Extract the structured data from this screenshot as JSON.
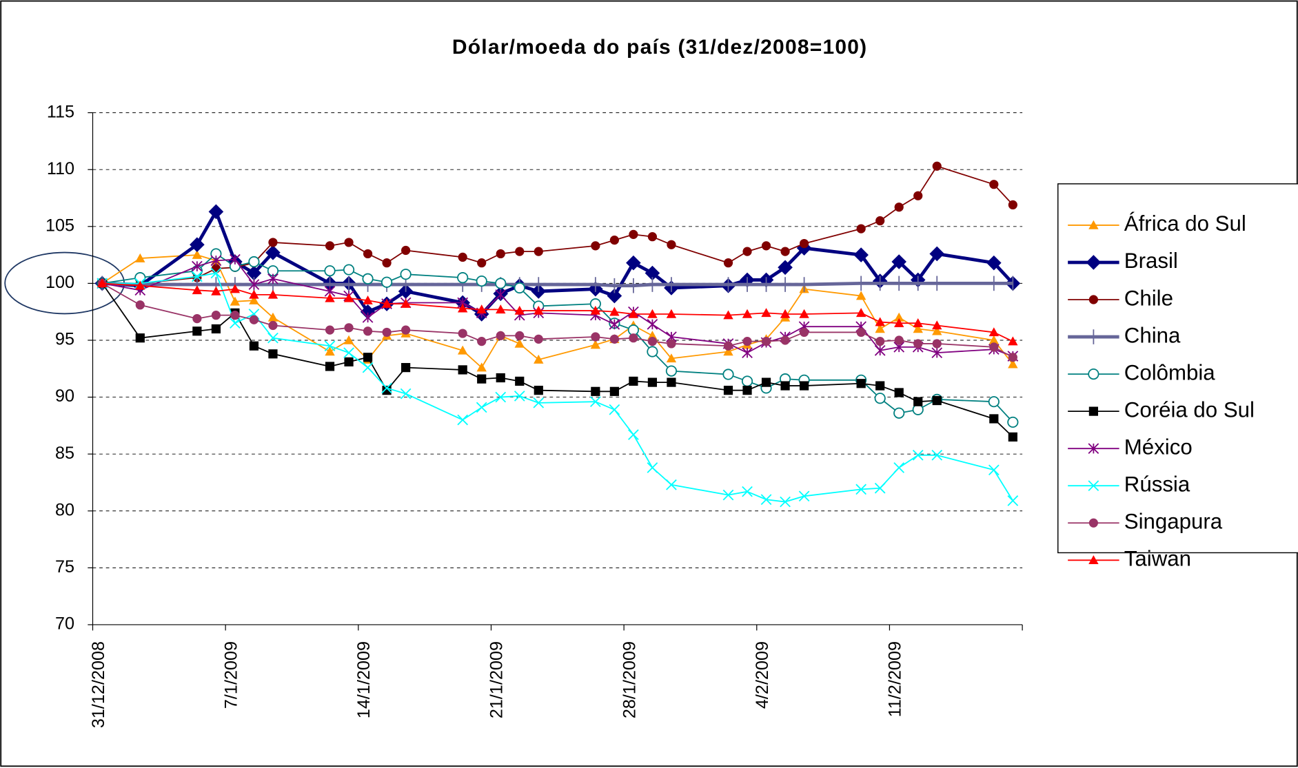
{
  "chart_data": {
    "type": "line",
    "title": "Dólar/moeda do país (31/dez/2008=100)",
    "x": [
      "31/12/2008",
      "2/1/2009",
      "5/1/2009",
      "6/1/2009",
      "7/1/2009",
      "8/1/2009",
      "9/1/2009",
      "12/1/2009",
      "13/1/2009",
      "14/1/2009",
      "15/1/2009",
      "16/1/2009",
      "19/1/2009",
      "20/1/2009",
      "21/1/2009",
      "22/1/2009",
      "23/1/2009",
      "26/1/2009",
      "27/1/2009",
      "28/1/2009",
      "29/1/2009",
      "30/1/2009",
      "2/2/2009",
      "3/2/2009",
      "4/2/2009",
      "5/2/2009",
      "6/2/2009",
      "9/2/2009",
      "10/2/2009",
      "11/2/2009",
      "12/2/2009",
      "13/2/2009",
      "16/2/2009",
      "17/2/2009"
    ],
    "xlim": [
      "31/12/2008",
      "18/2/2009"
    ],
    "xticks": [
      "31/12/2008",
      "7/1/2009",
      "14/1/2009",
      "21/1/2009",
      "28/1/2009",
      "4/2/2009",
      "11/2/2009"
    ],
    "ylim": [
      70,
      115
    ],
    "yticks": [
      70,
      75,
      80,
      85,
      90,
      95,
      100,
      105,
      110,
      115
    ],
    "grid": true,
    "legend": "right",
    "series": [
      {
        "name": "África do Sul",
        "color": "#ff9900",
        "marker": "triangle",
        "values": [
          100,
          102.2,
          102.5,
          102.0,
          98.4,
          98.5,
          97.0,
          94.0,
          95.0,
          93.3,
          95.4,
          95.6,
          94.1,
          92.6,
          95.4,
          94.7,
          93.3,
          94.6,
          95.1,
          96.3,
          95.4,
          93.4,
          94.0,
          94.6,
          95.1,
          97.0,
          99.5,
          98.9,
          96.0,
          97.0,
          96.0,
          95.8,
          95.0,
          92.9
        ]
      },
      {
        "name": "Brasil",
        "color": "#000080",
        "marker": "diamond",
        "line_width": 4,
        "values": [
          100,
          99.8,
          103.4,
          106.3,
          101.9,
          100.9,
          102.7,
          100.0,
          100.0,
          97.5,
          98.2,
          99.3,
          98.3,
          97.3,
          99.1,
          99.8,
          99.3,
          99.5,
          98.9,
          101.8,
          100.9,
          99.6,
          99.8,
          100.3,
          100.3,
          101.4,
          103.1,
          102.5,
          100.2,
          101.9,
          100.3,
          102.6,
          101.8,
          100.0
        ]
      },
      {
        "name": "Chile",
        "color": "#800000",
        "marker": "circle",
        "values": [
          100,
          100.0,
          100.5,
          101.3,
          101.4,
          101.8,
          103.6,
          103.3,
          103.6,
          102.6,
          101.8,
          102.9,
          102.3,
          101.8,
          102.6,
          102.8,
          102.8,
          103.3,
          103.8,
          104.3,
          104.1,
          103.4,
          101.8,
          102.8,
          103.3,
          102.8,
          103.5,
          104.8,
          105.5,
          106.7,
          107.7,
          110.3,
          108.7,
          106.9
        ]
      },
      {
        "name": "China",
        "color": "#666699",
        "marker": "plus",
        "line_width": 4,
        "values": [
          100,
          99.9,
          99.9,
          99.9,
          99.9,
          99.9,
          99.9,
          99.9,
          99.9,
          99.9,
          99.9,
          99.9,
          99.9,
          99.9,
          99.9,
          99.9,
          99.9,
          99.9,
          99.8,
          99.8,
          99.9,
          99.9,
          99.9,
          99.9,
          99.9,
          99.9,
          99.9,
          100.0,
          100.0,
          100.0,
          100.0,
          100.0,
          100.0,
          100.0
        ]
      },
      {
        "name": "Colômbia",
        "color": "#008080",
        "marker": "open-circle",
        "values": [
          100,
          100.5,
          101.1,
          102.6,
          101.5,
          101.9,
          101.1,
          101.1,
          101.2,
          100.4,
          100.1,
          100.8,
          100.5,
          100.2,
          100.0,
          99.6,
          98.0,
          98.2,
          96.5,
          95.9,
          94.0,
          92.3,
          92.0,
          91.4,
          90.8,
          91.6,
          91.5,
          91.5,
          89.9,
          88.6,
          88.9,
          89.8,
          89.6,
          87.8
        ]
      },
      {
        "name": "Coréia do Sul",
        "color": "#000000",
        "marker": "square",
        "values": [
          100,
          95.2,
          95.8,
          96.0,
          97.4,
          94.5,
          93.8,
          92.7,
          93.1,
          93.5,
          90.6,
          92.6,
          92.4,
          91.6,
          91.7,
          91.4,
          90.6,
          90.5,
          90.5,
          91.4,
          91.3,
          91.3,
          90.6,
          90.6,
          91.3,
          91.0,
          91.0,
          91.2,
          91.0,
          90.4,
          89.6,
          89.7,
          88.1,
          86.5
        ]
      },
      {
        "name": "México",
        "color": "#800080",
        "marker": "star",
        "values": [
          100,
          99.4,
          101.5,
          102.0,
          102.1,
          99.9,
          100.4,
          99.3,
          98.9,
          97.0,
          98.2,
          98.3,
          98.3,
          97.4,
          99.0,
          97.2,
          97.4,
          97.2,
          96.4,
          97.5,
          96.4,
          95.3,
          94.7,
          93.9,
          94.8,
          95.3,
          96.2,
          96.2,
          94.1,
          94.4,
          94.4,
          93.9,
          94.2,
          93.6
        ]
      },
      {
        "name": "Rússia",
        "color": "#00ffff",
        "marker": "x",
        "values": [
          100,
          100.0,
          100.6,
          100.9,
          96.5,
          97.3,
          95.2,
          94.5,
          93.9,
          92.6,
          90.8,
          90.3,
          88.0,
          89.1,
          90.0,
          90.1,
          89.5,
          89.6,
          88.9,
          86.7,
          83.8,
          82.3,
          81.4,
          81.7,
          81.0,
          80.8,
          81.3,
          81.9,
          82.0,
          83.8,
          84.9,
          84.9,
          83.6,
          80.9
        ]
      },
      {
        "name": "Singapura",
        "color": "#993366",
        "marker": "circle",
        "values": [
          100,
          98.1,
          96.9,
          97.2,
          97.2,
          96.8,
          96.3,
          95.9,
          96.1,
          95.8,
          95.7,
          95.9,
          95.6,
          94.9,
          95.4,
          95.4,
          95.1,
          95.3,
          95.1,
          95.2,
          94.9,
          94.7,
          94.5,
          94.9,
          94.9,
          95.0,
          95.7,
          95.7,
          94.9,
          95.0,
          94.7,
          94.7,
          94.4,
          93.5
        ]
      },
      {
        "name": "Taiwan",
        "color": "#ff0000",
        "marker": "triangle",
        "values": [
          100,
          99.8,
          99.4,
          99.3,
          99.5,
          99.0,
          99.0,
          98.7,
          98.7,
          98.5,
          98.2,
          98.2,
          97.8,
          97.7,
          97.7,
          97.6,
          97.6,
          97.6,
          97.5,
          97.3,
          97.3,
          97.3,
          97.2,
          97.3,
          97.4,
          97.3,
          97.3,
          97.4,
          96.6,
          96.5,
          96.5,
          96.3,
          95.7,
          94.9
        ]
      }
    ]
  }
}
